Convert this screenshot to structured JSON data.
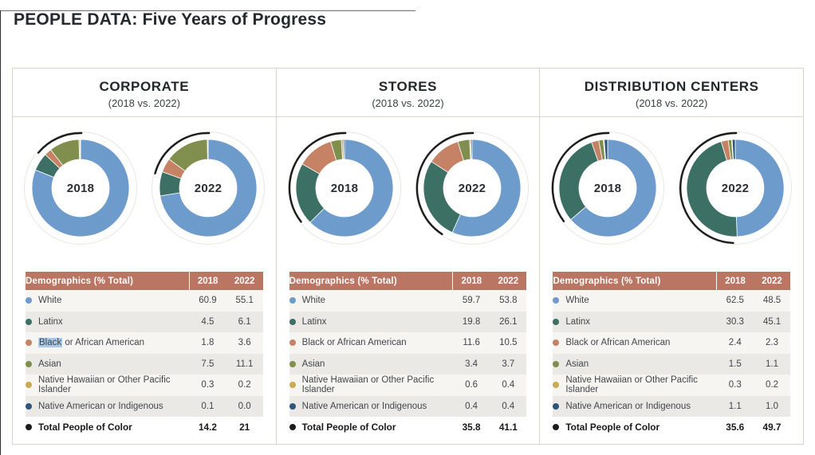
{
  "page": {
    "title": "PEOPLE DATA: Five Years of Progress"
  },
  "table_header": {
    "label": "Demographics (% Total)",
    "col_2018": "2018",
    "col_2022": "2022"
  },
  "colors": {
    "palette": [
      "#6d9bcb",
      "#3c7064",
      "#c58265",
      "#808f4d",
      "#c9ab55",
      "#2f567a"
    ],
    "total_dot": "#1c1c1c",
    "poc_arc": "#1b1b1b",
    "table_header_bg": "#ba7563",
    "table_header_text": "#ffffff",
    "row_odd": "#f7f5f2",
    "row_even": "#ebe9e5",
    "selection_highlight": "#a9c9e7",
    "plate_ring": "#e8e6e2"
  },
  "chart_data": [
    {
      "type": "donut",
      "title": "CORPORATE",
      "subtitle": "(2018 vs. 2022)",
      "categories": [
        "White",
        "Latinx",
        "Black or African American",
        "Asian",
        "Native Hawaiian or Other Pacific Islander",
        "Native American or Indigenous"
      ],
      "series": [
        {
          "name": "2018",
          "values": [
            60.9,
            4.5,
            1.8,
            7.5,
            0.3,
            0.1
          ],
          "total_people_of_color": 14.2
        },
        {
          "name": "2022",
          "values": [
            55.1,
            6.1,
            3.6,
            11.1,
            0.2,
            0.0
          ],
          "total_people_of_color": 21.0
        }
      ],
      "table_rows": [
        {
          "label": "White",
          "y2018": "60.9",
          "y2022": "55.1"
        },
        {
          "label": "Latinx",
          "y2018": "4.5",
          "y2022": "6.1"
        },
        {
          "label": "Black or African American",
          "y2018": "1.8",
          "y2022": "3.6",
          "selected_word": "Black"
        },
        {
          "label": "Asian",
          "y2018": "7.5",
          "y2022": "11.1"
        },
        {
          "label": "Native Hawaiian or Other Pacific Islander",
          "y2018": "0.3",
          "y2022": "0.2"
        },
        {
          "label": "Native American or Indigenous",
          "y2018": "0.1",
          "y2022": "0.0"
        },
        {
          "label": "Total People of Color",
          "y2018": "14.2",
          "y2022": "21",
          "is_total": true
        }
      ]
    },
    {
      "type": "donut",
      "title": "STORES",
      "subtitle": "(2018 vs. 2022)",
      "categories": [
        "White",
        "Latinx",
        "Black or African American",
        "Asian",
        "Native Hawaiian or Other Pacific Islander",
        "Native American or Indigenous"
      ],
      "series": [
        {
          "name": "2018",
          "values": [
            59.7,
            19.8,
            11.6,
            3.4,
            0.6,
            0.4
          ],
          "total_people_of_color": 35.8
        },
        {
          "name": "2022",
          "values": [
            53.8,
            26.1,
            10.5,
            3.7,
            0.4,
            0.4
          ],
          "total_people_of_color": 41.1
        }
      ],
      "table_rows": [
        {
          "label": "White",
          "y2018": "59.7",
          "y2022": "53.8"
        },
        {
          "label": "Latinx",
          "y2018": "19.8",
          "y2022": "26.1"
        },
        {
          "label": "Black or African American",
          "y2018": "11.6",
          "y2022": "10.5"
        },
        {
          "label": "Asian",
          "y2018": "3.4",
          "y2022": "3.7"
        },
        {
          "label": "Native Hawaiian or Other Pacific Islander",
          "y2018": "0.6",
          "y2022": "0.4"
        },
        {
          "label": "Native American or Indigenous",
          "y2018": "0.4",
          "y2022": "0.4"
        },
        {
          "label": "Total People of Color",
          "y2018": "35.8",
          "y2022": "41.1",
          "is_total": true
        }
      ]
    },
    {
      "type": "donut",
      "title": "DISTRIBUTION CENTERS",
      "subtitle": "(2018 vs. 2022)",
      "categories": [
        "White",
        "Latinx",
        "Black or African American",
        "Asian",
        "Native Hawaiian or Other Pacific Islander",
        "Native American or Indigenous"
      ],
      "series": [
        {
          "name": "2018",
          "values": [
            62.5,
            30.3,
            2.4,
            1.5,
            0.3,
            1.1
          ],
          "total_people_of_color": 35.6
        },
        {
          "name": "2022",
          "values": [
            48.5,
            45.1,
            2.3,
            1.1,
            0.2,
            1.0
          ],
          "total_people_of_color": 49.7
        }
      ],
      "table_rows": [
        {
          "label": "White",
          "y2018": "62.5",
          "y2022": "48.5"
        },
        {
          "label": "Latinx",
          "y2018": "30.3",
          "y2022": "45.1"
        },
        {
          "label": "Black or African American",
          "y2018": "2.4",
          "y2022": "2.3"
        },
        {
          "label": "Asian",
          "y2018": "1.5",
          "y2022": "1.1"
        },
        {
          "label": "Native Hawaiian or Other Pacific Islander",
          "y2018": "0.3",
          "y2022": "0.2"
        },
        {
          "label": "Native American or Indigenous",
          "y2018": "1.1",
          "y2022": "1.0"
        },
        {
          "label": "Total People of Color",
          "y2018": "35.6",
          "y2022": "49.7",
          "is_total": true
        }
      ]
    }
  ]
}
